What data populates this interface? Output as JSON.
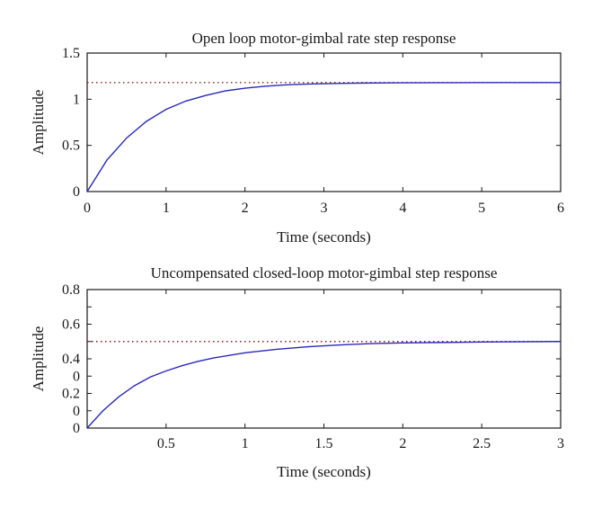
{
  "chart_data": [
    {
      "type": "line",
      "title": "Open loop motor-gimbal rate step response",
      "xlabel": "Time (seconds)",
      "ylabel": "Amplitude",
      "xlim": [
        0,
        6
      ],
      "ylim": [
        0,
        1.5
      ],
      "x_ticks": [
        0,
        1,
        2,
        3,
        4,
        5,
        6
      ],
      "x_tick_labels": [
        "0",
        "1",
        "2",
        "3",
        "4",
        "5",
        "6"
      ],
      "y_ticks": [
        0,
        0.5,
        1,
        1.5
      ],
      "y_tick_labels": [
        "0",
        "0.5",
        "1",
        "1.5"
      ],
      "reference_line": {
        "y": 1.18,
        "style": "dotted"
      },
      "series": [
        {
          "x": [
            0,
            0.25,
            0.5,
            0.75,
            1,
            1.25,
            1.5,
            1.75,
            2,
            2.25,
            2.5,
            2.75,
            3,
            3.25,
            3.5,
            3.75,
            4,
            4.5,
            5,
            5.5,
            6
          ],
          "y": [
            0,
            0.34,
            0.58,
            0.76,
            0.89,
            0.98,
            1.04,
            1.09,
            1.12,
            1.14,
            1.155,
            1.163,
            1.168,
            1.172,
            1.175,
            1.177,
            1.178,
            1.179,
            1.18,
            1.18,
            1.18
          ]
        }
      ],
      "grid": false,
      "colors": {
        "line": "#2a2ab8",
        "reference": "#8a1a1a"
      }
    },
    {
      "type": "line",
      "title": "Uncompensated closed-loop motor-gimbal step response",
      "xlabel": "Time (seconds)",
      "ylabel": "Amplitude",
      "xlim": [
        0,
        3
      ],
      "ylim": [
        0,
        0.8
      ],
      "x_ticks": [
        0.5,
        1,
        1.5,
        2,
        2.5,
        3
      ],
      "x_tick_labels": [
        "0.5",
        "1",
        "1.5",
        "2",
        "2.5",
        "3"
      ],
      "y_ticks": [
        0,
        0.1,
        0.2,
        0.3,
        0.4,
        0.5,
        0.6,
        0.7,
        0.8
      ],
      "y_tick_labels": [
        "0",
        "0",
        "0.2",
        "0",
        "0.4",
        "",
        "0.6",
        "",
        "0.8"
      ],
      "reference_line": {
        "y": 0.5,
        "style": "dotted"
      },
      "series": [
        {
          "x": [
            0,
            0.1,
            0.2,
            0.3,
            0.4,
            0.5,
            0.6,
            0.7,
            0.8,
            0.9,
            1,
            1.2,
            1.4,
            1.6,
            1.8,
            2,
            2.5,
            3
          ],
          "y": [
            0,
            0.1,
            0.18,
            0.245,
            0.295,
            0.33,
            0.36,
            0.385,
            0.405,
            0.42,
            0.435,
            0.455,
            0.47,
            0.48,
            0.488,
            0.492,
            0.497,
            0.5
          ]
        }
      ],
      "grid": false,
      "colors": {
        "line": "#2a2ab8",
        "reference": "#8a1a1a"
      }
    }
  ]
}
